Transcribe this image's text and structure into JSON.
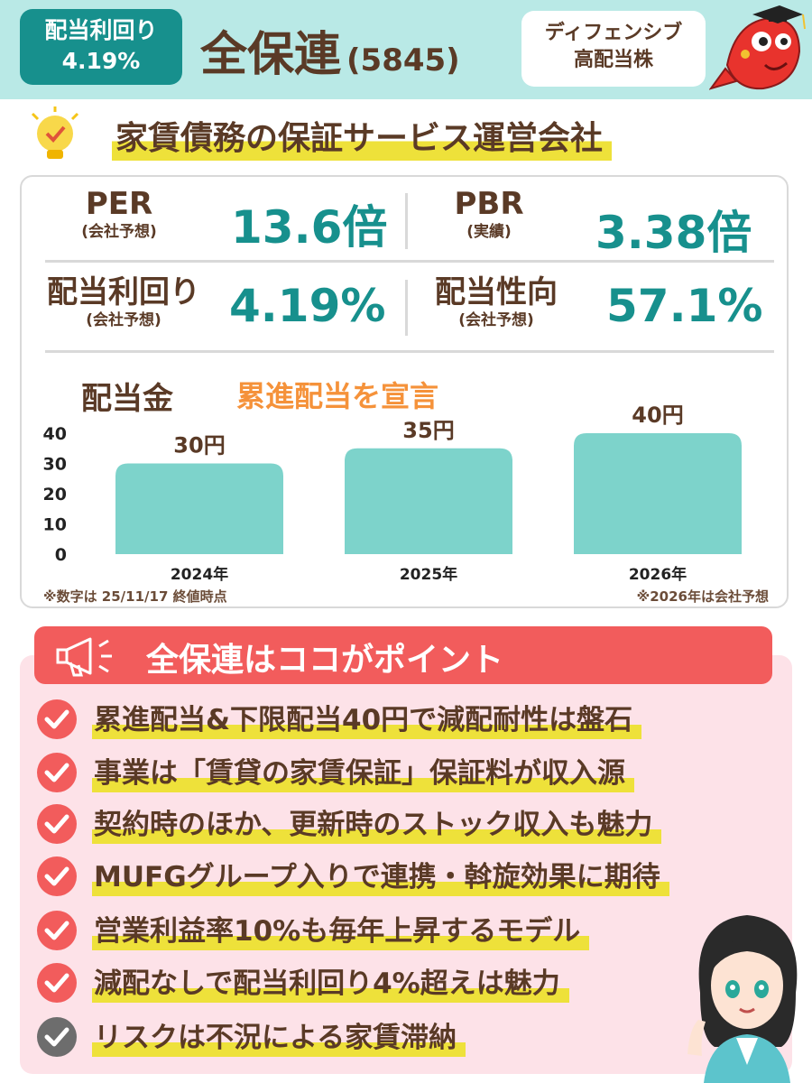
{
  "header": {
    "yield_label": "配当利回り",
    "yield_value": "4.19%",
    "company_name": "全保連",
    "company_code": "(5845)",
    "category_line1": "ディフェンシブ",
    "category_line2": "高配当株"
  },
  "subtitle": "家賃債務の保証サービス運営会社",
  "metrics": {
    "per": {
      "label": "PER",
      "sub": "(会社予想)",
      "value": "13.6倍"
    },
    "pbr": {
      "label": "PBR",
      "sub": "(実績)",
      "value": "3.38倍"
    },
    "dividend_yield": {
      "label": "配当利回り",
      "sub": "(会社予想)",
      "value": "4.19%"
    },
    "payout_ratio": {
      "label": "配当性向",
      "sub": "(会社予想)",
      "value": "57.1%"
    }
  },
  "dividend": {
    "title": "配当金",
    "note": "累進配当を宣言",
    "footnote_left": "※数字は 25/11/17 終値時点",
    "footnote_right": "※2026年は会社予想"
  },
  "chart_data": {
    "type": "bar",
    "categories": [
      "2024年",
      "2025年",
      "2026年"
    ],
    "values": [
      30,
      35,
      40
    ],
    "data_labels": [
      "30円",
      "35円",
      "40円"
    ],
    "ylim": [
      0,
      40
    ],
    "yticks": [
      0,
      10,
      20,
      30,
      40
    ],
    "grid": false,
    "bar_color": "#7dd3cb"
  },
  "points": {
    "title": "全保連はココがポイント",
    "items": [
      "累進配当&下限配当40円で減配耐性は盤石",
      "事業は「賃貸の家賃保証」保証料が収入源",
      "契約時のほか、更新時のストック収入も魅力",
      "MUFGグループ入りで連携・斡旋効果に期待",
      "営業利益率10%も毎年上昇するモデル",
      "減配なしで配当利回り4%超えは魅力",
      "リスクは不況による家賃滞納"
    ]
  },
  "colors": {
    "teal": "#17908d",
    "header_bg": "#b9e9e6",
    "brown": "#5a3a26",
    "orange": "#f5923a",
    "red": "#f25c5c",
    "pink_bg": "#fde2e8",
    "highlight": "#eee13a"
  }
}
